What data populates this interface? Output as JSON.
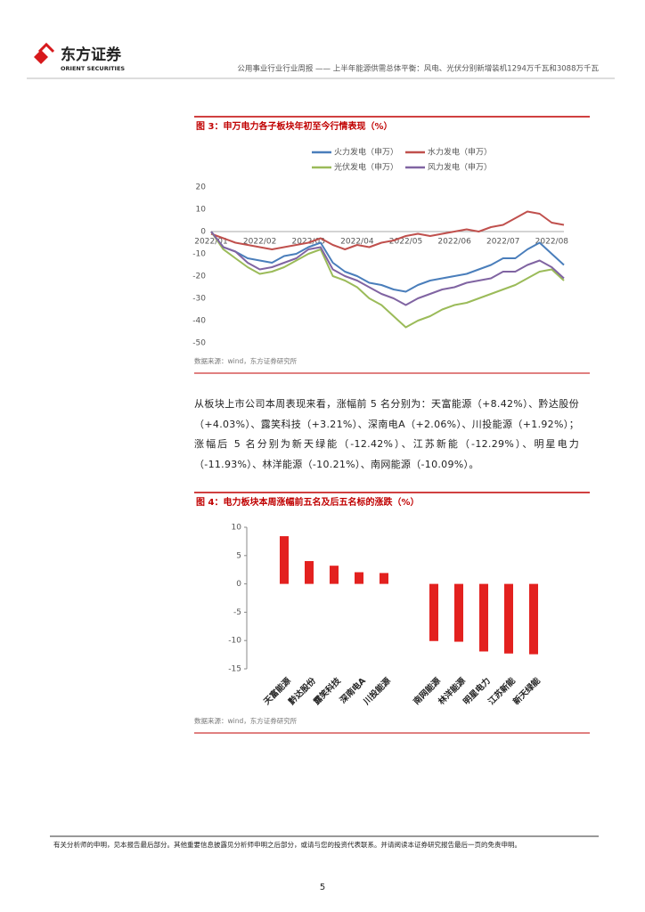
{
  "header": {
    "logo_cn": "东方证券",
    "logo_en": "ORIENT SECURITIES",
    "title": "公用事业行业行业周报 —— 上半年能源供需总体平衡：风电、光伏分别新增装机1294万千瓦和3088万千瓦"
  },
  "figures": [
    {
      "title": "图 3：申万电力各子板块年初至今行情表现（%）",
      "source": "数据来源：wind，东方证券研究所",
      "chart_data": {
        "type": "line",
        "grid": false,
        "categories": [
          "2022/01",
          null,
          null,
          null,
          "2022/02",
          null,
          null,
          null,
          "2022/03",
          null,
          null,
          null,
          "2022/04",
          null,
          null,
          null,
          "2022/05",
          null,
          null,
          null,
          "2022/06",
          null,
          null,
          null,
          "2022/07",
          null,
          null,
          null,
          "2022/08",
          null
        ],
        "series": [
          {
            "name": "火力发电（申万）",
            "color": "#4a7ebb",
            "values": [
              0,
              -7,
              -9,
              -12,
              -13,
              -14,
              -11,
              -10,
              -7,
              -5,
              -14,
              -18,
              -20,
              -23,
              -24,
              -26,
              -27,
              -24,
              -22,
              -21,
              -20,
              -19,
              -17,
              -15,
              -12,
              -12,
              -8,
              -5,
              -10,
              -15
            ]
          },
          {
            "name": "水力发电（申万）",
            "color": "#c0504d",
            "values": [
              -1,
              -3,
              -5,
              -6,
              -7,
              -8,
              -7,
              -6,
              -5,
              -3,
              -6,
              -8,
              -6,
              -7,
              -5,
              -4,
              -2,
              -1,
              -2,
              -1,
              0,
              1,
              0,
              2,
              3,
              6,
              9,
              8,
              4,
              3
            ]
          },
          {
            "name": "光伏发电（申万）",
            "color": "#9bbb59",
            "values": [
              0,
              -8,
              -12,
              -16,
              -19,
              -18,
              -16,
              -13,
              -10,
              -8,
              -20,
              -22,
              -25,
              -30,
              -33,
              -38,
              -43,
              -40,
              -38,
              -35,
              -33,
              -32,
              -30,
              -28,
              -26,
              -24,
              -21,
              -18,
              -17,
              -22
            ]
          },
          {
            "name": "风力发电（申万）",
            "color": "#8064a2",
            "values": [
              0,
              -7,
              -9,
              -14,
              -17,
              -16,
              -14,
              -12,
              -8,
              -7,
              -17,
              -20,
              -22,
              -25,
              -28,
              -30,
              -33,
              -30,
              -28,
              -26,
              -25,
              -23,
              -22,
              -21,
              -18,
              -18,
              -15,
              -13,
              -16,
              -21
            ]
          }
        ],
        "ylim": [
          -50,
          20
        ],
        "yticks": [
          -50,
          -40,
          -30,
          -20,
          -10,
          0,
          10,
          20
        ]
      }
    },
    {
      "title": "图 4：电力板块本周涨幅前五名及后五名标的涨跌（%）",
      "source": "数据来源：wind，东方证券研究所",
      "chart_data": {
        "type": "bar",
        "grid": false,
        "color": "#e3211f",
        "categories": [
          "天富能源",
          "黔达股份",
          "露笑科技",
          "深南电A",
          "川投能源",
          null,
          "南网能源",
          "林洋能源",
          "明星电力",
          "江苏新能",
          "新天绿能"
        ],
        "values": [
          8.42,
          4.03,
          3.21,
          2.06,
          1.92,
          null,
          -10.09,
          -10.21,
          -11.93,
          -12.29,
          -12.42
        ],
        "ylim": [
          -15,
          10
        ],
        "yticks": [
          -15,
          -10,
          -5,
          0,
          5,
          10
        ]
      }
    }
  ],
  "paragraph": "从板块上市公司本周表现来看，涨幅前 5 名分别为：天富能源（+8.42%）、黔达股份（+4.03%）、露笑科技（+3.21%）、深南电A（+2.06%）、川投能源（+1.92%）；涨幅后 5 名分别为新天绿能（-12.42%）、江苏新能（-12.29%）、明星电力（-11.93%）、林洋能源（-10.21%）、南网能源（-10.09%）。",
  "footer": "有关分析师的申明，见本报告最后部分。其他重要信息披露见分析师申明之后部分，或请与您的投资代表联系。并请阅读本证券研究报告最后一页的免责申明。",
  "page_number": "5"
}
